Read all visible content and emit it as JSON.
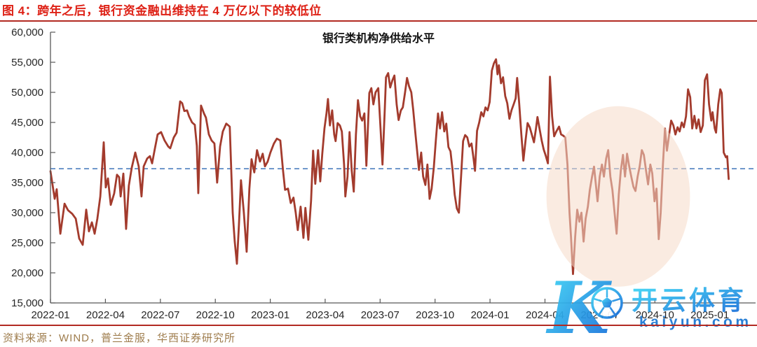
{
  "figure": {
    "title": "图 4：跨年之后，银行资金融出维持在 4 万亿以下的较低位",
    "source": "资料来源：WIND，普兰金服，华西证券研究所",
    "title_color": "#DE2116",
    "source_color": "#9E7C4C",
    "rule_color": "#B22A22"
  },
  "watermark": {
    "logo_letter": "K",
    "brand": "开云体育",
    "domain": "kaiyun.com",
    "color": "#1976D2",
    "gradient": [
      "#3FD9F6",
      "#1568D8"
    ]
  },
  "chart_data": {
    "type": "line",
    "title": "银行类机构净供给水平",
    "series_name": "银行类机构净供给",
    "line_color": "#A33B2D",
    "axis_color": "#595959",
    "tick_label_color": "#262626",
    "x_unit": "months_since_2022-01",
    "xlim": [
      0,
      38.5
    ],
    "ylim": [
      15000,
      60000
    ],
    "grid": false,
    "legend": "none",
    "reference_line": {
      "value": 37300,
      "color": "#4E7FBF",
      "style": "dashed"
    },
    "highlight_ellipse": {
      "center_month": 31.0,
      "center_value": 32700,
      "radius_months": 3.92,
      "radius_value": 15000,
      "color": "#F6DBC9",
      "opacity": 0.55
    },
    "y_ticks": [
      {
        "value": 60000,
        "label": "60,000"
      },
      {
        "value": 55000,
        "label": "55,000"
      },
      {
        "value": 50000,
        "label": "50,000"
      },
      {
        "value": 45000,
        "label": "45,000"
      },
      {
        "value": 40000,
        "label": "40,000"
      },
      {
        "value": 35000,
        "label": "35,000"
      },
      {
        "value": 30000,
        "label": "30,000"
      },
      {
        "value": 25000,
        "label": "25,000"
      },
      {
        "value": 20000,
        "label": "20,000"
      },
      {
        "value": 15000,
        "label": "15,000"
      }
    ],
    "x_ticks": [
      {
        "month": 0,
        "label": "2022-01"
      },
      {
        "month": 3,
        "label": "2022-04"
      },
      {
        "month": 6,
        "label": "2022-07"
      },
      {
        "month": 9,
        "label": "2022-10"
      },
      {
        "month": 12,
        "label": "2023-01"
      },
      {
        "month": 15,
        "label": "2023-04"
      },
      {
        "month": 18,
        "label": "2023-07"
      },
      {
        "month": 21,
        "label": "2023-10"
      },
      {
        "month": 24,
        "label": "2024-01"
      },
      {
        "month": 27,
        "label": "2024-04"
      },
      {
        "month": 30,
        "label": "2024-07"
      },
      {
        "month": 33,
        "label": "2024-10"
      },
      {
        "month": 36,
        "label": "2025-01"
      }
    ],
    "points": [
      [
        0,
        36900
      ],
      [
        0.23,
        32300
      ],
      [
        0.34,
        33900
      ],
      [
        0.54,
        26500
      ],
      [
        0.77,
        31500
      ],
      [
        0.96,
        30400
      ],
      [
        1.19,
        29800
      ],
      [
        1.38,
        29000
      ],
      [
        1.57,
        25700
      ],
      [
        1.76,
        24650
      ],
      [
        1.95,
        30500
      ],
      [
        2.1,
        26900
      ],
      [
        2.26,
        28400
      ],
      [
        2.41,
        26500
      ],
      [
        2.56,
        29000
      ],
      [
        2.72,
        32700
      ],
      [
        2.91,
        41700
      ],
      [
        3.02,
        34200
      ],
      [
        3.14,
        35700
      ],
      [
        3.29,
        31300
      ],
      [
        3.48,
        33200
      ],
      [
        3.63,
        36300
      ],
      [
        3.75,
        35900
      ],
      [
        3.83,
        32700
      ],
      [
        3.98,
        36500
      ],
      [
        4.13,
        27300
      ],
      [
        4.28,
        34500
      ],
      [
        4.44,
        37500
      ],
      [
        4.63,
        40000
      ],
      [
        4.82,
        37700
      ],
      [
        4.97,
        32700
      ],
      [
        5.09,
        37700
      ],
      [
        5.28,
        39000
      ],
      [
        5.43,
        39400
      ],
      [
        5.55,
        38200
      ],
      [
        5.7,
        40600
      ],
      [
        5.85,
        43000
      ],
      [
        6.04,
        43400
      ],
      [
        6.23,
        42000
      ],
      [
        6.43,
        41000
      ],
      [
        6.54,
        40700
      ],
      [
        6.73,
        42500
      ],
      [
        6.89,
        43300
      ],
      [
        7.08,
        48500
      ],
      [
        7.19,
        48200
      ],
      [
        7.31,
        46900
      ],
      [
        7.46,
        47000
      ],
      [
        7.57,
        46000
      ],
      [
        7.73,
        45000
      ],
      [
        7.88,
        44600
      ],
      [
        7.99,
        41100
      ],
      [
        8.07,
        33250
      ],
      [
        8.22,
        47800
      ],
      [
        8.38,
        46500
      ],
      [
        8.49,
        45800
      ],
      [
        8.65,
        43000
      ],
      [
        8.8,
        42000
      ],
      [
        8.95,
        41500
      ],
      [
        9.1,
        35000
      ],
      [
        9.26,
        41000
      ],
      [
        9.41,
        43500
      ],
      [
        9.6,
        44800
      ],
      [
        9.79,
        44300
      ],
      [
        9.95,
        30000
      ],
      [
        10.06,
        25200
      ],
      [
        10.18,
        21500
      ],
      [
        10.29,
        28000
      ],
      [
        10.4,
        35400
      ],
      [
        10.56,
        30000
      ],
      [
        10.71,
        23500
      ],
      [
        10.86,
        34000
      ],
      [
        10.98,
        38900
      ],
      [
        11.13,
        36700
      ],
      [
        11.28,
        40400
      ],
      [
        11.44,
        38500
      ],
      [
        11.59,
        39800
      ],
      [
        11.71,
        37700
      ],
      [
        11.86,
        38500
      ],
      [
        12.01,
        40000
      ],
      [
        12.2,
        41500
      ],
      [
        12.36,
        42300
      ],
      [
        12.55,
        42000
      ],
      [
        12.7,
        37000
      ],
      [
        12.81,
        33800
      ],
      [
        12.97,
        34000
      ],
      [
        13.12,
        31600
      ],
      [
        13.27,
        32500
      ],
      [
        13.39,
        30000
      ],
      [
        13.5,
        27100
      ],
      [
        13.66,
        31000
      ],
      [
        13.81,
        25800
      ],
      [
        13.92,
        30800
      ],
      [
        14.08,
        25500
      ],
      [
        14.23,
        32000
      ],
      [
        14.34,
        40300
      ],
      [
        14.46,
        34800
      ],
      [
        14.61,
        40400
      ],
      [
        14.73,
        35200
      ],
      [
        14.84,
        39800
      ],
      [
        14.96,
        44000
      ],
      [
        15.07,
        46500
      ],
      [
        15.15,
        48900
      ],
      [
        15.26,
        44500
      ],
      [
        15.38,
        47000
      ],
      [
        15.49,
        43000
      ],
      [
        15.57,
        41900
      ],
      [
        15.68,
        44900
      ],
      [
        15.8,
        44500
      ],
      [
        15.91,
        43500
      ],
      [
        16.03,
        38000
      ],
      [
        16.1,
        32700
      ],
      [
        16.22,
        36000
      ],
      [
        16.33,
        43400
      ],
      [
        16.45,
        37000
      ],
      [
        16.56,
        33500
      ],
      [
        16.68,
        43000
      ],
      [
        16.79,
        48700
      ],
      [
        16.91,
        46000
      ],
      [
        17.02,
        45300
      ],
      [
        17.14,
        46500
      ],
      [
        17.25,
        37800
      ],
      [
        17.41,
        49900
      ],
      [
        17.52,
        50700
      ],
      [
        17.63,
        48000
      ],
      [
        17.75,
        50000
      ],
      [
        17.9,
        50700
      ],
      [
        18.02,
        44000
      ],
      [
        18.13,
        38000
      ],
      [
        18.25,
        47000
      ],
      [
        18.32,
        52500
      ],
      [
        18.44,
        53200
      ],
      [
        18.55,
        50800
      ],
      [
        18.67,
        52000
      ],
      [
        18.78,
        52800
      ],
      [
        18.9,
        48000
      ],
      [
        19.01,
        45400
      ],
      [
        19.13,
        47000
      ],
      [
        19.24,
        47500
      ],
      [
        19.36,
        50000
      ],
      [
        19.47,
        52400
      ],
      [
        19.58,
        51000
      ],
      [
        19.7,
        50000
      ],
      [
        19.81,
        47000
      ],
      [
        19.93,
        43000
      ],
      [
        20.04,
        39700
      ],
      [
        20.12,
        37100
      ],
      [
        20.24,
        40000
      ],
      [
        20.35,
        36000
      ],
      [
        20.47,
        34600
      ],
      [
        20.58,
        38000
      ],
      [
        20.7,
        32300
      ],
      [
        20.81,
        34000
      ],
      [
        20.93,
        37500
      ],
      [
        21.04,
        42000
      ],
      [
        21.16,
        46500
      ],
      [
        21.27,
        44000
      ],
      [
        21.38,
        46700
      ],
      [
        21.5,
        43500
      ],
      [
        21.61,
        44800
      ],
      [
        21.73,
        40900
      ],
      [
        21.84,
        40200
      ],
      [
        21.96,
        36950
      ],
      [
        22.07,
        33000
      ],
      [
        22.19,
        30700
      ],
      [
        22.3,
        30000
      ],
      [
        22.42,
        36000
      ],
      [
        22.53,
        41900
      ],
      [
        22.64,
        42900
      ],
      [
        22.76,
        42500
      ],
      [
        22.87,
        41000
      ],
      [
        22.99,
        41500
      ],
      [
        23.1,
        39000
      ],
      [
        23.18,
        36950
      ],
      [
        23.29,
        43600
      ],
      [
        23.41,
        45000
      ],
      [
        23.52,
        46700
      ],
      [
        23.64,
        46000
      ],
      [
        23.75,
        47500
      ],
      [
        23.87,
        47000
      ],
      [
        23.98,
        48400
      ],
      [
        24.1,
        53600
      ],
      [
        24.21,
        54800
      ],
      [
        24.33,
        55500
      ],
      [
        24.41,
        53000
      ],
      [
        24.48,
        54500
      ],
      [
        24.6,
        51500
      ],
      [
        24.71,
        52500
      ],
      [
        24.83,
        49400
      ],
      [
        24.94,
        48200
      ],
      [
        25.06,
        45600
      ],
      [
        25.17,
        47000
      ],
      [
        25.29,
        48000
      ],
      [
        25.4,
        49000
      ],
      [
        25.48,
        52400
      ],
      [
        25.59,
        48200
      ],
      [
        25.71,
        43000
      ],
      [
        25.82,
        38650
      ],
      [
        25.94,
        42000
      ],
      [
        26.05,
        44900
      ],
      [
        26.17,
        44200
      ],
      [
        26.28,
        43000
      ],
      [
        26.4,
        41700
      ],
      [
        26.51,
        44000
      ],
      [
        26.59,
        45900
      ],
      [
        26.7,
        44000
      ],
      [
        26.82,
        42000
      ],
      [
        26.93,
        40500
      ],
      [
        27.05,
        39400
      ],
      [
        27.16,
        38200
      ],
      [
        27.27,
        52600
      ],
      [
        27.39,
        46000
      ],
      [
        27.5,
        42700
      ],
      [
        27.62,
        43500
      ],
      [
        27.77,
        44300
      ],
      [
        27.88,
        43000
      ],
      [
        28,
        42800
      ],
      [
        28.11,
        42500
      ],
      [
        28.23,
        38000
      ],
      [
        28.34,
        30000
      ],
      [
        28.42,
        26050
      ],
      [
        28.53,
        19800
      ],
      [
        28.65,
        26000
      ],
      [
        28.76,
        30500
      ],
      [
        28.88,
        28500
      ],
      [
        28.99,
        30000
      ],
      [
        29.11,
        25200
      ],
      [
        29.22,
        29000
      ],
      [
        29.34,
        31000
      ],
      [
        29.45,
        33800
      ],
      [
        29.57,
        36000
      ],
      [
        29.68,
        37650
      ],
      [
        29.8,
        34000
      ],
      [
        29.87,
        31900
      ],
      [
        29.99,
        36000
      ],
      [
        30.11,
        38000
      ],
      [
        30.22,
        36000
      ],
      [
        30.34,
        39000
      ],
      [
        30.45,
        40400
      ],
      [
        30.57,
        36000
      ],
      [
        30.68,
        33800
      ],
      [
        30.8,
        30000
      ],
      [
        30.91,
        26500
      ],
      [
        31.03,
        33000
      ],
      [
        31.14,
        37000
      ],
      [
        31.26,
        39600
      ],
      [
        31.37,
        36000
      ],
      [
        31.48,
        39800
      ],
      [
        31.6,
        37700
      ],
      [
        31.71,
        36000
      ],
      [
        31.83,
        34300
      ],
      [
        31.94,
        33600
      ],
      [
        32.06,
        36000
      ],
      [
        32.17,
        37700
      ],
      [
        32.29,
        40400
      ],
      [
        32.4,
        39600
      ],
      [
        32.52,
        37000
      ],
      [
        32.63,
        34700
      ],
      [
        32.75,
        38000
      ],
      [
        32.86,
        36500
      ],
      [
        32.98,
        31900
      ],
      [
        33.09,
        34000
      ],
      [
        33.21,
        25600
      ],
      [
        33.32,
        30000
      ],
      [
        33.44,
        38000
      ],
      [
        33.55,
        44000
      ],
      [
        33.66,
        40300
      ],
      [
        33.78,
        43000
      ],
      [
        33.89,
        45300
      ],
      [
        34.01,
        44500
      ],
      [
        34.12,
        43000
      ],
      [
        34.24,
        44200
      ],
      [
        34.35,
        43500
      ],
      [
        34.47,
        45000
      ],
      [
        34.58,
        44200
      ],
      [
        34.7,
        46000
      ],
      [
        34.81,
        50500
      ],
      [
        34.93,
        49200
      ],
      [
        35.04,
        44000
      ],
      [
        35.16,
        46100
      ],
      [
        35.27,
        44000
      ],
      [
        35.39,
        45500
      ],
      [
        35.5,
        43400
      ],
      [
        35.62,
        44500
      ],
      [
        35.73,
        52000
      ],
      [
        35.85,
        53000
      ],
      [
        35.96,
        48000
      ],
      [
        36.08,
        45300
      ],
      [
        36.15,
        46700
      ],
      [
        36.27,
        44000
      ],
      [
        36.34,
        43300
      ],
      [
        36.46,
        48000
      ],
      [
        36.57,
        50500
      ],
      [
        36.65,
        49900
      ],
      [
        36.76,
        40000
      ],
      [
        36.88,
        39200
      ],
      [
        36.95,
        39400
      ],
      [
        37.03,
        35600
      ]
    ]
  }
}
